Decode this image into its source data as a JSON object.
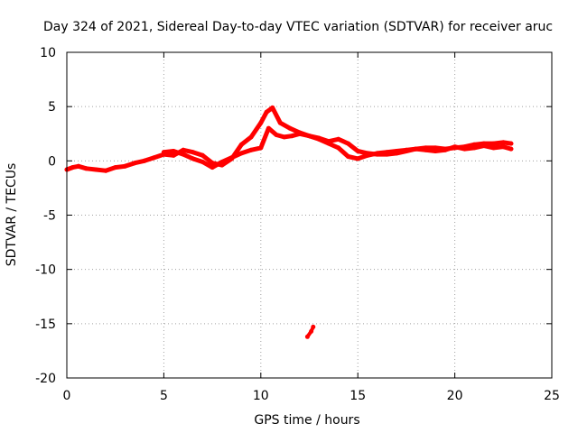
{
  "chart_data": {
    "type": "scatter",
    "title": "Day 324 of 2021, Sidereal Day-to-day VTEC variation (SDTVAR) for receiver aruc",
    "xlabel": "GPS time / hours",
    "ylabel": "SDTVAR / TECUs",
    "xlim": [
      0,
      25
    ],
    "ylim": [
      -20,
      10
    ],
    "xticks": [
      0,
      5,
      10,
      15,
      20,
      25
    ],
    "yticks": [
      -20,
      -15,
      -10,
      -5,
      0,
      5,
      10
    ],
    "xtick_labels": [
      "0",
      "5",
      "10",
      "15",
      "20",
      "25"
    ],
    "ytick_labels": [
      "-20",
      "-15",
      "-10",
      "-5",
      "0",
      "5",
      "10"
    ],
    "grid": true,
    "series_color": "#ff0000",
    "series": [
      {
        "name": "main trace",
        "x": [
          0.0,
          0.3,
          0.6,
          1.0,
          1.5,
          2.0,
          2.5,
          3.0,
          3.5,
          4.0,
          4.5,
          5.0,
          5.5,
          6.0,
          6.5,
          7.0,
          7.5,
          8.0,
          8.5,
          9.0,
          9.5,
          10.0,
          10.3,
          10.6,
          11.0,
          11.5,
          12.0,
          12.5,
          13.0,
          13.5,
          14.0,
          14.5,
          15.0,
          15.5,
          16.0,
          16.5,
          17.0,
          17.5,
          18.0,
          18.5,
          19.0,
          19.5,
          20.0,
          20.5,
          21.0,
          21.5,
          22.0,
          22.5,
          22.9
        ],
        "y": [
          -0.8,
          -0.6,
          -0.5,
          -0.7,
          -0.8,
          -0.9,
          -0.6,
          -0.5,
          -0.2,
          0.0,
          0.3,
          0.6,
          0.5,
          1.0,
          0.8,
          0.5,
          -0.2,
          -0.4,
          0.2,
          1.5,
          2.2,
          3.5,
          4.5,
          4.9,
          3.5,
          3.0,
          2.6,
          2.3,
          2.1,
          1.8,
          2.0,
          1.6,
          0.9,
          0.7,
          0.6,
          0.6,
          0.7,
          0.9,
          1.1,
          1.2,
          1.2,
          1.1,
          1.2,
          1.3,
          1.5,
          1.6,
          1.6,
          1.7,
          1.6
        ]
      },
      {
        "name": "secondary trace",
        "x": [
          5.0,
          5.5,
          6.0,
          6.5,
          7.0,
          7.5,
          8.0,
          8.5,
          9.0,
          9.5,
          10.0,
          10.4,
          10.8,
          11.2,
          11.6,
          12.0,
          12.5,
          13.0,
          13.5,
          14.0,
          14.5,
          15.0,
          15.5,
          16.0,
          16.5,
          17.0,
          17.5,
          18.0,
          18.5,
          19.0,
          19.5,
          20.0,
          20.5,
          21.0,
          21.5,
          22.0,
          22.5,
          22.9
        ],
        "y": [
          0.8,
          0.9,
          0.6,
          0.2,
          -0.1,
          -0.6,
          -0.1,
          0.3,
          0.7,
          1.0,
          1.2,
          3.0,
          2.4,
          2.2,
          2.3,
          2.5,
          2.3,
          2.0,
          1.6,
          1.2,
          0.4,
          0.2,
          0.5,
          0.7,
          0.8,
          0.9,
          1.0,
          1.1,
          1.0,
          0.9,
          1.0,
          1.3,
          1.1,
          1.2,
          1.4,
          1.2,
          1.3,
          1.1
        ]
      },
      {
        "name": "isolated segment",
        "x": [
          12.4,
          12.6,
          12.7
        ],
        "y": [
          -16.2,
          -15.7,
          -15.3
        ]
      }
    ]
  }
}
